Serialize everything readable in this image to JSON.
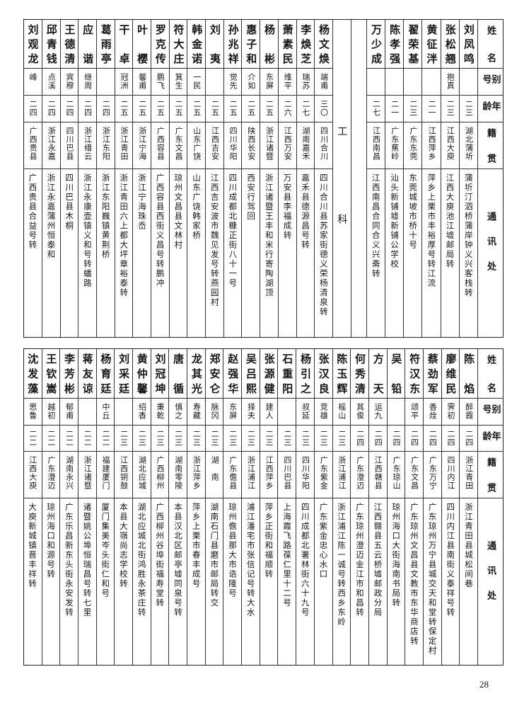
{
  "headers": {
    "name": "姓名",
    "alias": "别号",
    "age": "年龄",
    "native": "籍贯",
    "address": "通讯处"
  },
  "section_label": "工科",
  "page_number": "28",
  "top_right_group": [
    {
      "name": "刘凤鸣",
      "alias": "",
      "age": "二三",
      "native": "湖北蒲圻",
      "address": "蒲圻汀泗桥蒲岸钟义兴客栈转"
    },
    {
      "name": "张松翘",
      "alias": "抱真",
      "age": "二三",
      "native": "江西大庾",
      "address": "江西大庾池江墟邮局转"
    },
    {
      "name": "黄征泮",
      "alias": "",
      "age": "二一",
      "native": "江西萍乡",
      "address": "萍乡上栗市丰裕厚号转江流"
    },
    {
      "name": "翟荣基",
      "alias": "",
      "age": "二三",
      "native": "广东东莞",
      "address": "东莞城坡市桥十号"
    },
    {
      "name": "陈孝强",
      "alias": "",
      "age": "二一",
      "native": "广东蕉岭",
      "address": "汕头新铺墟新铺公学校"
    },
    {
      "name": "万少成",
      "alias": "",
      "age": "二七",
      "native": "江西南昌",
      "address": "江西南昌合同合义兴斋转"
    }
  ],
  "top_left_group": [
    {
      "name": "杨文焕",
      "alias": "端甫",
      "age": "三〇",
      "native": "四川合川",
      "address": "四川合川县苏家街德义荣杨清泉转"
    },
    {
      "name": "李焕芝",
      "alias": "瑞苏",
      "age": "二七",
      "native": "湖南嘉禾",
      "address": "嘉禾县德源昌号转"
    },
    {
      "name": "萧素民",
      "alias": "维平",
      "age": "二六",
      "native": "江西万安",
      "address": "万安县李福成转"
    },
    {
      "name": "杨彬",
      "alias": "东屏",
      "age": "二五",
      "native": "浙江诸暨",
      "address": "浙江诸暨王丰和米行寄陶湖顶"
    },
    {
      "name": "惠子和",
      "alias": "介如",
      "age": "二五",
      "native": "陕西长安",
      "address": "西安行驾回"
    },
    {
      "name": "孙兆祥",
      "alias": "觉先",
      "age": "二五",
      "native": "四川华阳",
      "address": "四川成都北糠正街八十一号"
    },
    {
      "name": "刘夷",
      "alias": "",
      "age": "二五",
      "native": "江西吉安",
      "address": "江西吉安波市魏见发号转燕园村"
    },
    {
      "name": "韩金诺",
      "alias": "一民",
      "age": "二五",
      "native": "山东广饶",
      "address": "山东广饶韩家桥"
    },
    {
      "name": "符大庄",
      "alias": "箕生",
      "age": "二五",
      "native": "广东文昌",
      "address": "琼州文昌县文林村"
    },
    {
      "name": "罗克传",
      "alias": "鹏飞",
      "age": "二五",
      "native": "广西容县",
      "address": "广西容县西街义昌号转鹏冲"
    },
    {
      "name": "叶樱",
      "alias": "馨甫",
      "age": "二五",
      "native": "浙江宁海",
      "address": "浙江宁海珠岙"
    },
    {
      "name": "干卓",
      "alias": "冠洲",
      "age": "二五",
      "native": "浙江青田",
      "address": "浙江青田六上都大坪章裕泰转"
    },
    {
      "name": "葛雨亭",
      "alias": "",
      "age": "二四",
      "native": "浙江东阳",
      "address": "浙江东阳巍镇黄荆桥"
    },
    {
      "name": "应谐",
      "alias": "继周",
      "age": "二四",
      "native": "浙江缙云",
      "address": "浙江永康壶镇义和号转蟠路"
    },
    {
      "name": "王德清",
      "alias": "宾穆",
      "age": "二四",
      "native": "四川巴县",
      "address": "四川巴县木桐"
    },
    {
      "name": "邱青钱",
      "alias": "点溪",
      "age": "二四",
      "native": "浙江永嘉",
      "address": "浙江永嘉蒲州恒泰和"
    },
    {
      "name": "刘观龙",
      "alias": "峰",
      "age": "二四",
      "native": "广西贵县",
      "address": "广西贵县合益号转"
    }
  ],
  "bottom_group": [
    {
      "name": "陈焰",
      "alias": "醉霞",
      "age": "二四",
      "native": "浙江青田",
      "address": "浙江青田县城松间巷"
    },
    {
      "name": "廖维民",
      "alias": "霁初",
      "age": "二四",
      "native": "四川内江",
      "address": "四川内江县南街义泰祥号转"
    },
    {
      "name": "蔡劲军",
      "alias": "香烇",
      "age": "二四",
      "native": "广东万宁",
      "address": "广东琼州万宁县城交天和堂转保定村"
    },
    {
      "name": "符汉东",
      "alias": "颂平",
      "age": "二四",
      "native": "广东文昌",
      "address": "广东琼州文昌县文教市东华商店转"
    },
    {
      "name": "吴铅",
      "alias": "",
      "age": "二四",
      "native": "广东琼山",
      "address": "琼州海口大街海南书局转"
    },
    {
      "name": "方天",
      "alias": "运九",
      "age": "二四",
      "native": "江西赣县",
      "address": "江西赣县五云桥墟邮政分局"
    },
    {
      "name": "何秀清",
      "alias": "其俊",
      "age": "二四",
      "native": "广东澄迈",
      "address": "广东琼州澄迈金江市和昌转"
    },
    {
      "name": "陈玉辉",
      "alias": "榣山",
      "age": "二三",
      "native": "浙江浦江",
      "address": "浙江浦江陈一诚号转西乡东岭"
    },
    {
      "name": "张汉良",
      "alias": "竞雄",
      "age": "二三",
      "native": "广东紫金",
      "address": "广东紫金忠心水口"
    },
    {
      "name": "杨引之",
      "alias": "叔延",
      "age": "二三",
      "native": "四川华阳",
      "address": "四川成都北署林街六十九号"
    },
    {
      "name": "石重阳",
      "alias": "",
      "age": "二三",
      "native": "四川巴县",
      "address": "上海霞飞路葆仁里十二号"
    },
    {
      "name": "张源健",
      "alias": "建人",
      "age": "二三",
      "native": "江西萍乡",
      "address": "萍乡正街和福顺转"
    },
    {
      "name": "吴吕熙",
      "alias": "择夫",
      "age": "二三",
      "native": "浙江浦江",
      "address": "浦江潘宅市张信记号转大水"
    },
    {
      "name": "赵强华",
      "alias": "东屏",
      "age": "二三",
      "native": "广东儋县",
      "address": "琼州儋县那大市诰隆号"
    },
    {
      "name": "郑安仑",
      "alias": "脉冈",
      "age": "二三",
      "native": "湖　南",
      "address": "湖南石门县磨市邮局转交"
    },
    {
      "name": "龙其光",
      "alias": "寿藏",
      "age": "二三",
      "native": "浙江萍乡",
      "address": "萍乡上栗市春丰成号"
    },
    {
      "name": "唐循",
      "alias": "慎之",
      "age": "二三",
      "native": "湖南零陵",
      "address": "本县汉北区邮亭墟同泉号转"
    },
    {
      "name": "刘冠坤",
      "alias": "秉乾",
      "age": "二三",
      "native": "广西柳州",
      "address": "广西柳州谷埠街福寿堂转"
    },
    {
      "name": "黄仲馨",
      "alias": "绍香",
      "age": "二三",
      "native": "湖北应城",
      "address": "湖北应城北街鸿胜永茶庄转"
    },
    {
      "name": "刘采廷",
      "alias": "",
      "age": "二三",
      "native": "江西铜鼓",
      "address": "本县大嶺尚志学校转"
    },
    {
      "name": "杨育廷",
      "alias": "中丘",
      "age": "二二",
      "native": "福建厦门",
      "address": "厦门集美岑头街仁和号"
    },
    {
      "name": "蒋友谅",
      "alias": "",
      "age": "二二",
      "native": "浙江诸暨",
      "address": "诸暨姚公埠恒瑞昌号转七里"
    },
    {
      "name": "李芳彬",
      "alias": "郁甫",
      "age": "二二",
      "native": "湖南永兴",
      "address": "广东乐昌新东头街永安发转"
    },
    {
      "name": "王钦嵩",
      "alias": "越初",
      "age": "二二",
      "native": "广东澄迈",
      "address": "琼州海口和源号转"
    },
    {
      "name": "沈发藻",
      "alias": "思鲁",
      "age": "二二",
      "native": "江西大庾",
      "address": "大庾新城镇晋丰祥转"
    }
  ]
}
